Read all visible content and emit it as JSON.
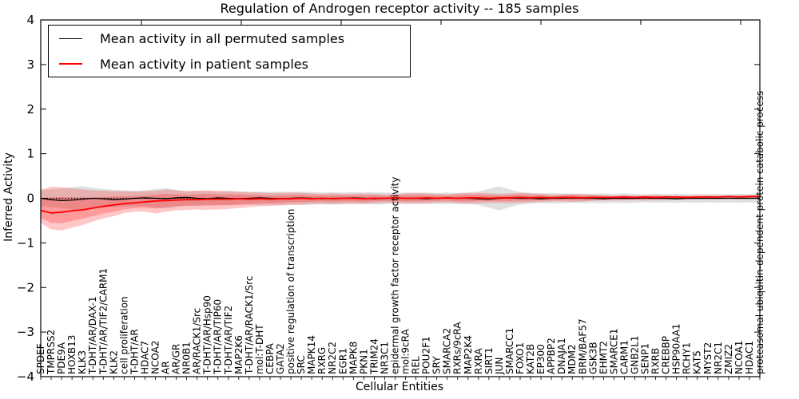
{
  "chart_data": {
    "type": "line",
    "title": "Regulation of Androgen receptor activity -- 185 samples",
    "xlabel": "Cellular Entities",
    "ylabel": "Inferred Activity",
    "ylim": [
      -4,
      4
    ],
    "yticks": [
      4,
      3,
      2,
      1,
      0,
      -1,
      -2,
      -3,
      -4
    ],
    "grid": false,
    "legend_position": "upper-left",
    "zero_line": {
      "style": "dotted",
      "color": "#000000",
      "y": 0
    },
    "categories": [
      "SPDEF",
      "TMPRSS2",
      "PDE9A",
      "HOXB13",
      "KLK3",
      "T-DHT/AR/DAX-1",
      "T-DHT/AR/TIF2/CARM1",
      "KLK2",
      "cell proliferation",
      "T-DHT/AR",
      "HDAC7",
      "NCOA2",
      "AR",
      "AR/GR",
      "NR0B1",
      "AR/RACK1/Src",
      "T-DHT/AR/Hsp90",
      "T-DHT/AR/TIP60",
      "T-DHT/AR/TIF2",
      "MAP2K6",
      "T-DHT/AR/RACK1/Src",
      "mol:T-DHT",
      "CEBPA",
      "GATA2",
      "positive regulation of transcription",
      "SRC",
      "MAPK14",
      "RXRG",
      "NR2C2",
      "EGR1",
      "MAPK8",
      "PKN1",
      "TRIM24",
      "NR3C1",
      "epidermal growth factor receptor activity",
      "mol:9cRA",
      "REL",
      "POU2F1",
      "SRY",
      "SMARCA2",
      "RXRs/9cRA",
      "MAP2K4",
      "RXRA",
      "SIRT1",
      "JUN",
      "SMARCC1",
      "FOXO1",
      "KAT2B",
      "EP300",
      "APPBP2",
      "DNAJA1",
      "MDM2",
      "BRM/BAF57",
      "GSK3B",
      "EHMT2",
      "SMARCE1",
      "CARM1",
      "GNB2L1",
      "SENP1",
      "RXRB",
      "CREBBP",
      "HSP90AA1",
      "RCHY1",
      "KAT5",
      "MYST2",
      "NR2C1",
      "ZMIZ2",
      "NCOA1",
      "HDAC1",
      "proteasomal ubiquitin-dependent protein catabolic process"
    ],
    "series": [
      {
        "name": "Mean activity in all permuted samples",
        "color": "#000000",
        "values": [
          0.0,
          -0.03,
          -0.05,
          -0.04,
          -0.02,
          0.0,
          -0.01,
          -0.03,
          -0.02,
          0.0,
          0.01,
          0.0,
          -0.01,
          0.01,
          0.02,
          0.0,
          -0.01,
          0.01,
          0.0,
          -0.01,
          0.0,
          0.01,
          0.0,
          -0.01,
          0.0,
          0.01,
          0.0,
          -0.01,
          0.0,
          0.0,
          0.01,
          0.0,
          -0.01,
          0.0,
          0.01,
          0.0,
          0.0,
          -0.01,
          0.0,
          0.01,
          0.0,
          0.0,
          -0.01,
          -0.02,
          0.0,
          0.01,
          0.0,
          0.0,
          -0.01,
          0.0,
          0.0,
          0.01,
          0.0,
          0.0,
          -0.01,
          0.0,
          0.0,
          0.0,
          0.01,
          0.0,
          0.0,
          -0.01,
          0.0,
          0.0,
          0.0,
          0.0,
          0.0,
          0.0,
          0.0,
          0.0
        ]
      },
      {
        "name": "Mean activity in patient samples",
        "color": "#ff0000",
        "values": [
          -0.27,
          -0.33,
          -0.31,
          -0.28,
          -0.26,
          -0.22,
          -0.18,
          -0.15,
          -0.12,
          -0.1,
          -0.08,
          -0.06,
          -0.05,
          -0.04,
          -0.03,
          -0.03,
          -0.02,
          -0.02,
          -0.02,
          -0.01,
          -0.02,
          -0.01,
          -0.02,
          -0.01,
          -0.01,
          0.0,
          -0.01,
          0.0,
          -0.01,
          0.0,
          0.0,
          -0.01,
          0.0,
          0.0,
          0.01,
          0.0,
          0.0,
          0.01,
          0.0,
          0.01,
          0.0,
          0.01,
          0.01,
          0.0,
          0.01,
          0.01,
          0.02,
          0.01,
          0.02,
          0.01,
          0.02,
          0.02,
          0.01,
          0.02,
          0.02,
          0.02,
          0.03,
          0.02,
          0.03,
          0.02,
          0.03,
          0.03,
          0.02,
          0.03,
          0.03,
          0.03,
          0.04,
          0.03,
          0.04,
          0.04
        ]
      }
    ],
    "bands": [
      {
        "name": "permuted-spread",
        "color": "#000000",
        "opacity": 0.12,
        "upper": [
          0.18,
          0.2,
          0.22,
          0.25,
          0.27,
          0.24,
          0.21,
          0.19,
          0.18,
          0.17,
          0.18,
          0.21,
          0.23,
          0.19,
          0.16,
          0.17,
          0.16,
          0.15,
          0.16,
          0.15,
          0.14,
          0.15,
          0.14,
          0.15,
          0.14,
          0.15,
          0.14,
          0.13,
          0.14,
          0.13,
          0.14,
          0.13,
          0.14,
          0.13,
          0.12,
          0.13,
          0.12,
          0.13,
          0.12,
          0.13,
          0.12,
          0.13,
          0.15,
          0.21,
          0.27,
          0.2,
          0.14,
          0.12,
          0.11,
          0.12,
          0.11,
          0.1,
          0.11,
          0.1,
          0.11,
          0.1,
          0.11,
          0.1,
          0.09,
          0.1,
          0.09,
          0.1,
          0.09,
          0.1,
          0.09,
          0.1,
          0.09,
          0.1,
          0.09,
          0.1
        ],
        "lower": [
          -0.18,
          -0.2,
          -0.22,
          -0.25,
          -0.27,
          -0.24,
          -0.21,
          -0.19,
          -0.18,
          -0.17,
          -0.18,
          -0.21,
          -0.23,
          -0.19,
          -0.16,
          -0.17,
          -0.16,
          -0.15,
          -0.16,
          -0.15,
          -0.14,
          -0.15,
          -0.14,
          -0.15,
          -0.14,
          -0.15,
          -0.14,
          -0.13,
          -0.14,
          -0.13,
          -0.14,
          -0.13,
          -0.14,
          -0.13,
          -0.12,
          -0.13,
          -0.12,
          -0.13,
          -0.12,
          -0.13,
          -0.12,
          -0.13,
          -0.15,
          -0.21,
          -0.27,
          -0.2,
          -0.14,
          -0.12,
          -0.11,
          -0.12,
          -0.11,
          -0.1,
          -0.11,
          -0.1,
          -0.11,
          -0.1,
          -0.11,
          -0.1,
          -0.09,
          -0.1,
          -0.09,
          -0.1,
          -0.09,
          -0.1,
          -0.09,
          -0.1,
          -0.09,
          -0.1,
          -0.09,
          -0.1
        ]
      },
      {
        "name": "patient-outer-spread",
        "color": "#ff0000",
        "opacity": 0.22,
        "upper": [
          0.2,
          0.26,
          0.25,
          0.22,
          0.2,
          0.18,
          0.17,
          0.16,
          0.16,
          0.15,
          0.16,
          0.17,
          0.2,
          0.18,
          0.16,
          0.17,
          0.18,
          0.17,
          0.16,
          0.15,
          0.14,
          0.13,
          0.12,
          0.12,
          0.13,
          0.12,
          0.11,
          0.1,
          0.11,
          0.1,
          0.1,
          0.11,
          0.1,
          0.09,
          0.09,
          0.11,
          0.12,
          0.11,
          0.1,
          0.09,
          0.11,
          0.12,
          0.12,
          0.11,
          0.1,
          0.11,
          0.12,
          0.11,
          0.1,
          0.08,
          0.09,
          0.1,
          0.09,
          0.08,
          0.07,
          0.06,
          0.07,
          0.06,
          0.06,
          0.07,
          0.06,
          0.05,
          0.06,
          0.05,
          0.06,
          0.05,
          0.06,
          0.06,
          0.07,
          0.07
        ],
        "lower": [
          -0.55,
          -0.7,
          -0.72,
          -0.66,
          -0.6,
          -0.52,
          -0.45,
          -0.4,
          -0.33,
          -0.3,
          -0.3,
          -0.34,
          -0.3,
          -0.27,
          -0.26,
          -0.25,
          -0.26,
          -0.25,
          -0.24,
          -0.22,
          -0.2,
          -0.18,
          -0.17,
          -0.16,
          -0.15,
          -0.14,
          -0.13,
          -0.12,
          -0.13,
          -0.12,
          -0.11,
          -0.12,
          -0.11,
          -0.1,
          -0.1,
          -0.11,
          -0.12,
          -0.11,
          -0.1,
          -0.09,
          -0.11,
          -0.12,
          -0.11,
          -0.1,
          -0.1,
          -0.11,
          -0.1,
          -0.09,
          -0.08,
          -0.07,
          -0.07,
          -0.08,
          -0.07,
          -0.06,
          -0.05,
          -0.05,
          -0.05,
          -0.04,
          -0.05,
          -0.04,
          -0.04,
          -0.03,
          -0.03,
          -0.02,
          -0.02,
          -0.02,
          -0.01,
          -0.02,
          -0.01,
          -0.01
        ]
      },
      {
        "name": "patient-inner-spread",
        "color": "#ff0000",
        "opacity": 0.22,
        "upper": [
          0.01,
          0.02,
          0.03,
          0.02,
          0.02,
          0.02,
          0.03,
          0.04,
          0.05,
          0.05,
          0.06,
          0.08,
          0.1,
          0.09,
          0.08,
          0.09,
          0.1,
          0.09,
          0.09,
          0.09,
          0.08,
          0.07,
          0.06,
          0.07,
          0.07,
          0.07,
          0.06,
          0.06,
          0.06,
          0.06,
          0.06,
          0.06,
          0.06,
          0.05,
          0.06,
          0.07,
          0.07,
          0.07,
          0.06,
          0.06,
          0.07,
          0.08,
          0.08,
          0.07,
          0.06,
          0.07,
          0.08,
          0.07,
          0.07,
          0.05,
          0.06,
          0.07,
          0.06,
          0.06,
          0.05,
          0.04,
          0.05,
          0.04,
          0.05,
          0.05,
          0.05,
          0.04,
          0.04,
          0.04,
          0.05,
          0.04,
          0.05,
          0.05,
          0.06,
          0.06
        ],
        "lower": [
          -0.44,
          -0.55,
          -0.56,
          -0.51,
          -0.46,
          -0.4,
          -0.34,
          -0.3,
          -0.25,
          -0.22,
          -0.21,
          -0.23,
          -0.2,
          -0.18,
          -0.17,
          -0.16,
          -0.16,
          -0.16,
          -0.15,
          -0.14,
          -0.13,
          -0.11,
          -0.11,
          -0.1,
          -0.09,
          -0.08,
          -0.08,
          -0.07,
          -0.08,
          -0.07,
          -0.07,
          -0.08,
          -0.07,
          -0.06,
          -0.06,
          -0.07,
          -0.07,
          -0.06,
          -0.06,
          -0.05,
          -0.07,
          -0.07,
          -0.06,
          -0.06,
          -0.06,
          -0.06,
          -0.05,
          -0.05,
          -0.04,
          -0.04,
          -0.03,
          -0.04,
          -0.04,
          -0.03,
          -0.02,
          -0.02,
          -0.02,
          -0.02,
          -0.02,
          -0.02,
          -0.01,
          -0.01,
          -0.01,
          0.0,
          0.0,
          0.0,
          0.01,
          0.0,
          0.01,
          0.01
        ]
      }
    ]
  }
}
